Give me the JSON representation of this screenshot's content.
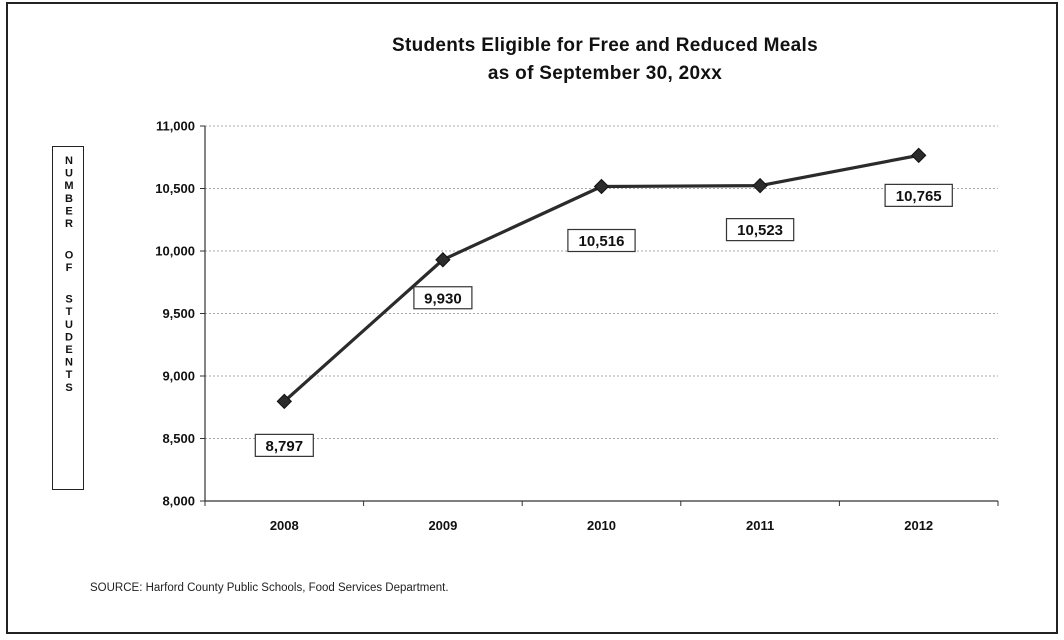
{
  "chart_data": {
    "type": "line",
    "title_lines": [
      "Students Eligible for Free and Reduced Meals",
      "as of September 30, 20xx"
    ],
    "ylabel": "NUMBER OF STUDENTS",
    "xlabel": "",
    "categories": [
      "2008",
      "2009",
      "2010",
      "2011",
      "2012"
    ],
    "series": [
      {
        "values": [
          8797,
          9930,
          10516,
          10523,
          10765
        ]
      }
    ],
    "data_labels": [
      "8,797",
      "9,930",
      "10,516",
      "10,523",
      "10,765"
    ],
    "ylim": [
      8000,
      11000
    ],
    "yticks": [
      8000,
      8500,
      9000,
      9500,
      10000,
      10500,
      11000
    ],
    "ytick_labels": [
      "8,000",
      "8,500",
      "9,000",
      "9,500",
      "10,000",
      "10,500",
      "11,000"
    ],
    "grid": true,
    "line_color": "#2b2b2b",
    "marker": "diamond"
  },
  "source_note": "SOURCE:  Harford County Public Schools, Food Services Department."
}
